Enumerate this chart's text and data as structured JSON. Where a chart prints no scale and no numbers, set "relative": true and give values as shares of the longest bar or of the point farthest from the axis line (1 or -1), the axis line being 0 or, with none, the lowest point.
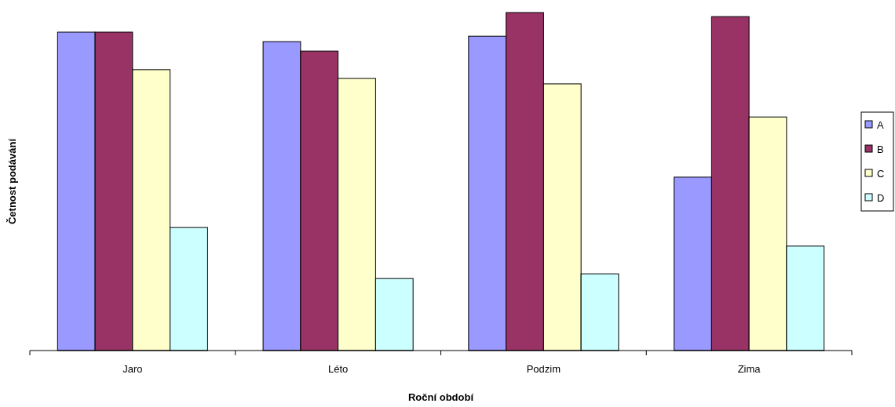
{
  "chart_data": {
    "type": "bar",
    "relative": true,
    "xlabel": "Roční období",
    "ylabel": "Četnost podávání",
    "categories": [
      "Jaro",
      "Léto",
      "Podzim",
      "Zima"
    ],
    "legend": "right",
    "series": [
      {
        "name": "A",
        "color": "#9999ff",
        "values": [
          0.942,
          0.914,
          0.93,
          0.513
        ]
      },
      {
        "name": "B",
        "color": "#993366",
        "values": [
          0.942,
          0.886,
          1,
          0.988
        ]
      },
      {
        "name": "C",
        "color": "#ffffcc",
        "values": [
          0.831,
          0.805,
          0.789,
          0.691
        ]
      },
      {
        "name": "D",
        "color": "#ccffff",
        "values": [
          0.364,
          0.213,
          0.227,
          0.309
        ]
      }
    ]
  }
}
